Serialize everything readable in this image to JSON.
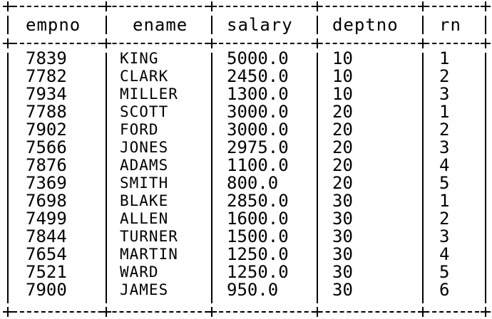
{
  "table": {
    "columns": [
      "empno",
      "ename",
      "salary",
      "deptno",
      "rn"
    ],
    "rows": [
      [
        "7839",
        "KING",
        "5000.0",
        "10",
        "1"
      ],
      [
        "7782",
        "CLARK",
        "2450.0",
        "10",
        "2"
      ],
      [
        "7934",
        "MILLER",
        "1300.0",
        "10",
        "3"
      ],
      [
        "7788",
        "SCOTT",
        "3000.0",
        "20",
        "1"
      ],
      [
        "7902",
        "FORD",
        "3000.0",
        "20",
        "2"
      ],
      [
        "7566",
        "JONES",
        "2975.0",
        "20",
        "3"
      ],
      [
        "7876",
        "ADAMS",
        "1100.0",
        "20",
        "4"
      ],
      [
        "7369",
        "SMITH",
        "800.0",
        "20",
        "5"
      ],
      [
        "7698",
        "BLAKE",
        "2850.0",
        "30",
        "1"
      ],
      [
        "7499",
        "ALLEN",
        "1600.0",
        "30",
        "2"
      ],
      [
        "7844",
        "TURNER",
        "1500.0",
        "30",
        "3"
      ],
      [
        "7654",
        "MARTIN",
        "1250.0",
        "30",
        "4"
      ],
      [
        "7521",
        "WARD",
        "1250.0",
        "30",
        "5"
      ],
      [
        "7900",
        "JAMES",
        "950.0",
        "30",
        "6"
      ]
    ]
  }
}
